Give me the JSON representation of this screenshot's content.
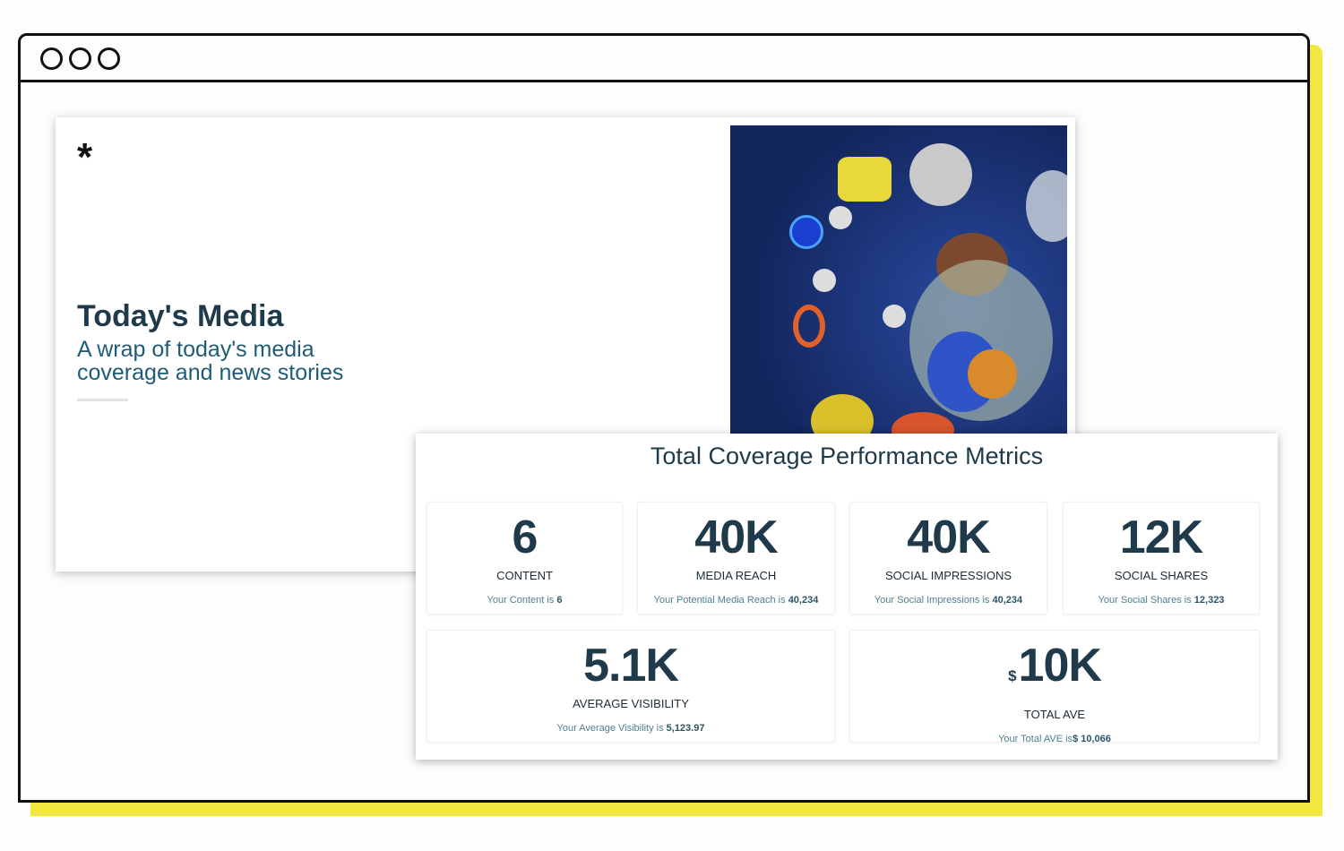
{
  "window": {
    "controls": [
      "circle",
      "circle",
      "circle"
    ]
  },
  "hero": {
    "logo": "*",
    "title": "Today's Media",
    "subtitle": "A wrap of today's media coverage and news stories"
  },
  "metrics": {
    "title": "Total Coverage Performance Metrics",
    "tiles": [
      {
        "value": "6",
        "label": "CONTENT",
        "desc": "Your Content is",
        "desc_value": "6"
      },
      {
        "value": "40K",
        "label": "MEDIA REACH",
        "desc": "Your Potential Media Reach is",
        "desc_value": "40,234"
      },
      {
        "value": "40K",
        "label": "SOCIAL IMPRESSIONS",
        "desc": "Your Social Impressions is",
        "desc_value": "40,234"
      },
      {
        "value": "12K",
        "label": "SOCIAL SHARES",
        "desc": "Your Social Shares is",
        "desc_value": "12,323"
      },
      {
        "value": "5.1K",
        "label": "AVERAGE VISIBILITY",
        "desc": "Your Average Visibility is",
        "desc_value": "5,123.97"
      },
      {
        "currency": "$",
        "value": "10K",
        "label": "TOTAL AVE",
        "desc": "Your Total AVE is",
        "desc_value": "$  10,066"
      }
    ]
  },
  "colors": {
    "accent": "#f2e640",
    "text": "#1f3a4a",
    "link": "#1f5c78"
  }
}
